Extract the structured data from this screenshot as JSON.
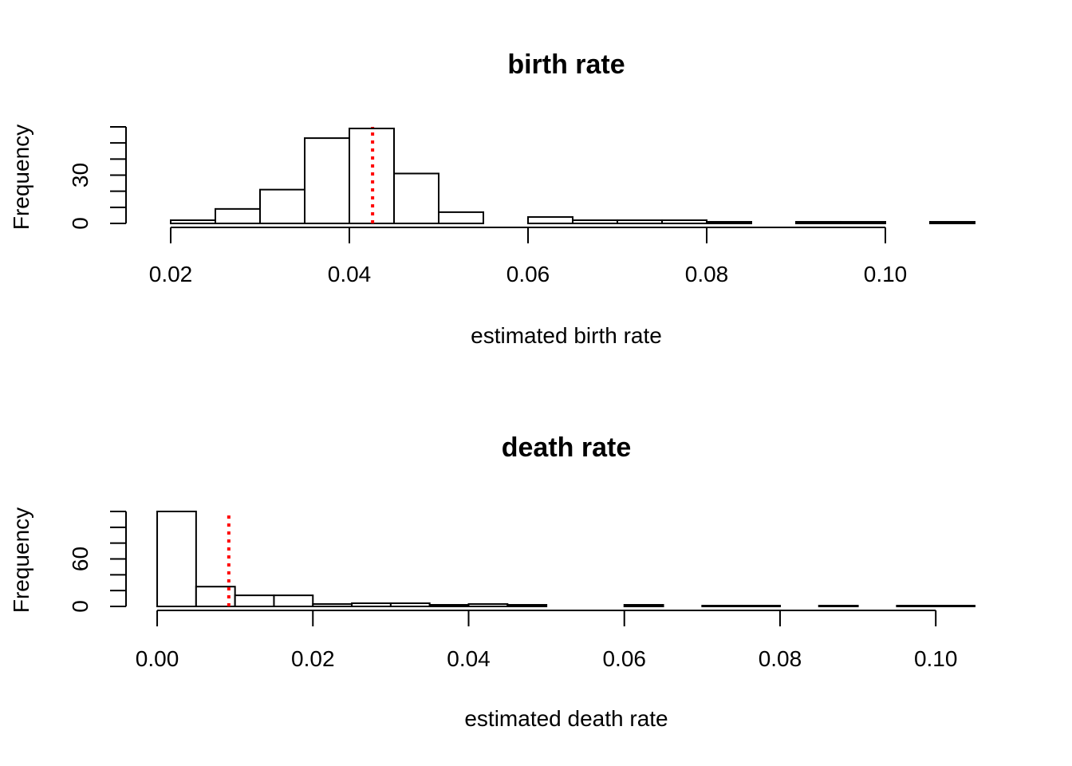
{
  "chart_data": [
    {
      "type": "bar",
      "title": "birth rate",
      "xlabel": "estimated birth rate",
      "ylabel": "Frequency",
      "bin_width": 0.005,
      "bin_starts": [
        0.02,
        0.025,
        0.03,
        0.035,
        0.04,
        0.045,
        0.05,
        0.055,
        0.06,
        0.065,
        0.07,
        0.075,
        0.08,
        0.085,
        0.09,
        0.095,
        0.1,
        0.105
      ],
      "values": [
        2,
        9,
        21,
        53,
        59,
        31,
        7,
        0,
        4,
        2,
        2,
        2,
        1,
        0,
        1,
        1,
        0,
        1
      ],
      "xlim": [
        0.015,
        0.11
      ],
      "ylim": [
        0,
        59
      ],
      "x_ticks": [
        0.02,
        0.04,
        0.06,
        0.08,
        0.1
      ],
      "x_tick_labels": [
        "0.02",
        "0.04",
        "0.06",
        "0.08",
        "0.10"
      ],
      "y_ticks": [
        0,
        10,
        20,
        30,
        40,
        50,
        60
      ],
      "y_tick_labels": {
        "0": "0",
        "30": "30"
      },
      "reference_line": {
        "x": 0.0426,
        "color": "#ff0000",
        "style": "dotted"
      }
    },
    {
      "type": "bar",
      "title": "death rate",
      "xlabel": "estimated death rate",
      "ylabel": "Frequency",
      "bin_width": 0.005,
      "bin_starts": [
        0.0,
        0.005,
        0.01,
        0.015,
        0.02,
        0.025,
        0.03,
        0.035,
        0.04,
        0.045,
        0.05,
        0.055,
        0.06,
        0.065,
        0.07,
        0.075,
        0.08,
        0.085,
        0.09,
        0.095,
        0.1
      ],
      "values": [
        120,
        25,
        14,
        14,
        3,
        4,
        4,
        2,
        3,
        2,
        0,
        0,
        2,
        0,
        1,
        1,
        0,
        1,
        0,
        1,
        1
      ],
      "xlim": [
        -0.004,
        0.105
      ],
      "ylim": [
        0,
        120
      ],
      "x_ticks": [
        0.0,
        0.02,
        0.04,
        0.06,
        0.08,
        0.1
      ],
      "x_tick_labels": [
        "0.00",
        "0.02",
        "0.04",
        "0.06",
        "0.08",
        "0.10"
      ],
      "y_ticks": [
        0,
        20,
        40,
        60,
        80,
        100,
        120
      ],
      "y_tick_labels": {
        "0": "0",
        "60": "60"
      },
      "reference_line": {
        "x": 0.0092,
        "color": "#ff0000",
        "style": "dotted"
      }
    }
  ]
}
